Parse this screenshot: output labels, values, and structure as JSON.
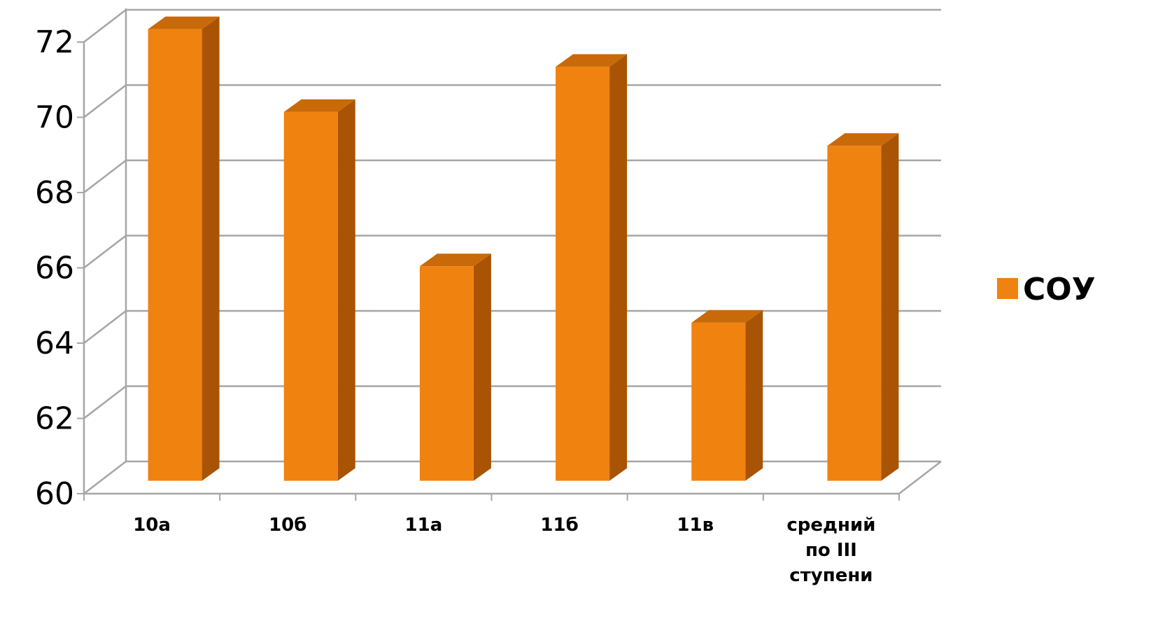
{
  "colors": {
    "bar_front": "#f0820f",
    "bar_side": "#a85404",
    "bar_top": "#c86a0a",
    "grid": "#a6a6a6"
  },
  "chart_data": {
    "type": "bar",
    "categories": [
      [
        "10а"
      ],
      [
        "10б"
      ],
      [
        "11а"
      ],
      [
        "11б"
      ],
      [
        "11в"
      ],
      [
        "средний",
        "по III",
        "ступени"
      ]
    ],
    "series": [
      {
        "name": "СОУ",
        "values": [
          72,
          69.8,
          65.7,
          71,
          64.2,
          68.9
        ]
      }
    ],
    "ylim": [
      60,
      72
    ],
    "yticks": [
      60,
      62,
      64,
      66,
      68,
      70,
      72
    ],
    "ytick_labels": [
      "60",
      "62",
      "64",
      "66",
      "68",
      "70",
      "72"
    ],
    "grid": true,
    "legend": "right",
    "style": "3d-column"
  }
}
